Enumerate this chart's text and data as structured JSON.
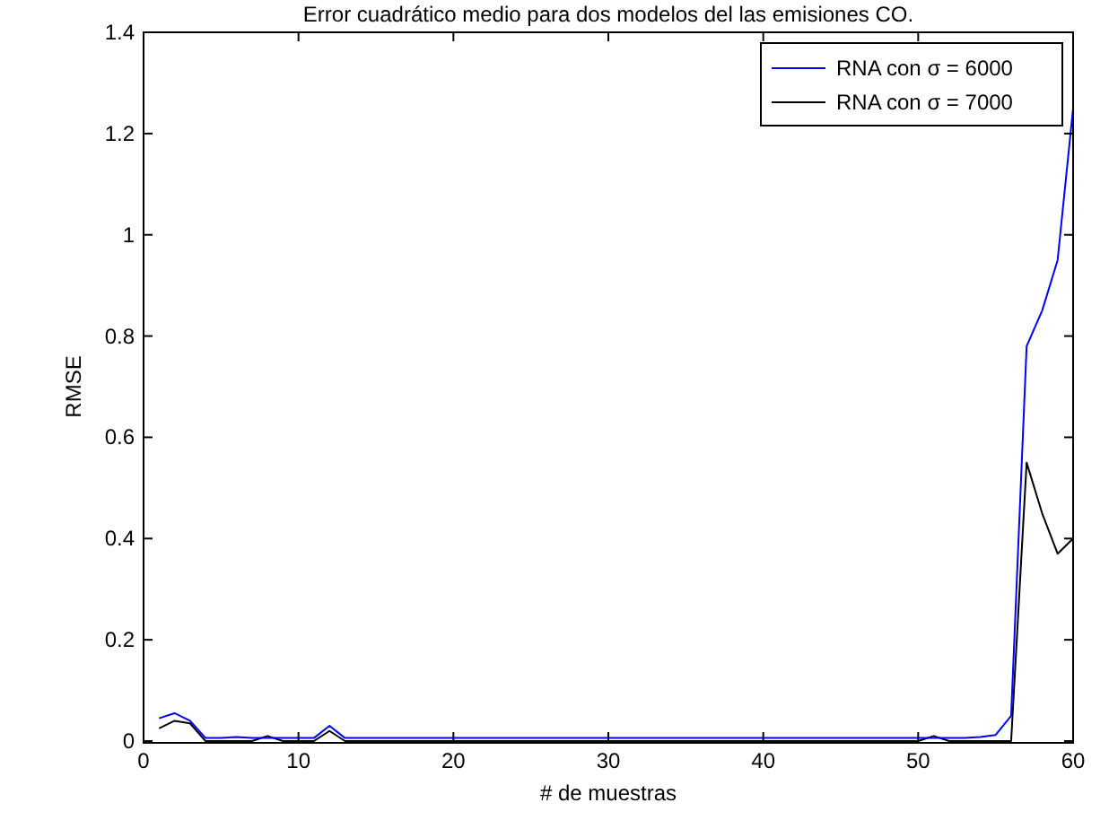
{
  "chart_data": {
    "type": "line",
    "title": "Error cuadrático medio para dos modelos del las emisiones CO.",
    "xlabel": "# de muestras",
    "ylabel": "RMSE",
    "x": [
      1,
      2,
      3,
      4,
      5,
      6,
      7,
      8,
      9,
      10,
      11,
      12,
      13,
      14,
      15,
      16,
      17,
      18,
      19,
      20,
      21,
      22,
      23,
      24,
      25,
      26,
      27,
      28,
      29,
      30,
      31,
      32,
      33,
      34,
      35,
      36,
      37,
      38,
      39,
      40,
      41,
      42,
      43,
      44,
      45,
      46,
      47,
      48,
      49,
      50,
      51,
      52,
      53,
      54,
      55,
      56,
      57,
      58,
      59,
      60
    ],
    "series": [
      {
        "name": "RNA con σ = 6000",
        "color": "#0000ff",
        "marker": "none",
        "values": [
          0.045,
          0.055,
          0.04,
          0.006,
          0.006,
          0.008,
          0.006,
          0.006,
          0.006,
          0.006,
          0.006,
          0.03,
          0.006,
          0.006,
          0.006,
          0.006,
          0.006,
          0.006,
          0.006,
          0.006,
          0.006,
          0.006,
          0.006,
          0.006,
          0.006,
          0.006,
          0.006,
          0.006,
          0.006,
          0.006,
          0.006,
          0.006,
          0.006,
          0.006,
          0.006,
          0.006,
          0.006,
          0.006,
          0.006,
          0.006,
          0.006,
          0.006,
          0.006,
          0.006,
          0.006,
          0.006,
          0.006,
          0.006,
          0.006,
          0.006,
          0.006,
          0.006,
          0.006,
          0.008,
          0.012,
          0.05,
          0.78,
          0.85,
          0.95,
          1.25
        ]
      },
      {
        "name": "RNA con σ = 7000",
        "color": "#000000",
        "marker": "none",
        "values": [
          0.025,
          0.04,
          0.035,
          0.0,
          0.0,
          0.0,
          0.0,
          0.01,
          0.0,
          0.0,
          0.0,
          0.02,
          0.0,
          0.0,
          0.0,
          0.0,
          0.0,
          0.0,
          0.0,
          0.0,
          0.0,
          0.0,
          0.0,
          0.0,
          0.0,
          0.0,
          0.0,
          0.0,
          0.0,
          0.0,
          0.0,
          0.0,
          0.0,
          0.0,
          0.0,
          0.0,
          0.0,
          0.0,
          0.0,
          0.0,
          0.0,
          0.0,
          0.0,
          0.0,
          0.0,
          0.0,
          0.0,
          0.0,
          0.0,
          0.0,
          0.01,
          0.0,
          0.0,
          0.0,
          0.0,
          0.0,
          0.55,
          0.45,
          0.37,
          0.4
        ]
      }
    ],
    "xlim": [
      0,
      60
    ],
    "xticks": [
      0,
      10,
      20,
      30,
      40,
      50,
      60
    ],
    "ylim": [
      0,
      1.4
    ],
    "yticks": [
      0,
      0.2,
      0.4,
      0.6,
      0.8,
      1,
      1.2,
      1.4
    ],
    "grid": false,
    "legend": "top right",
    "line_style": "solid"
  }
}
